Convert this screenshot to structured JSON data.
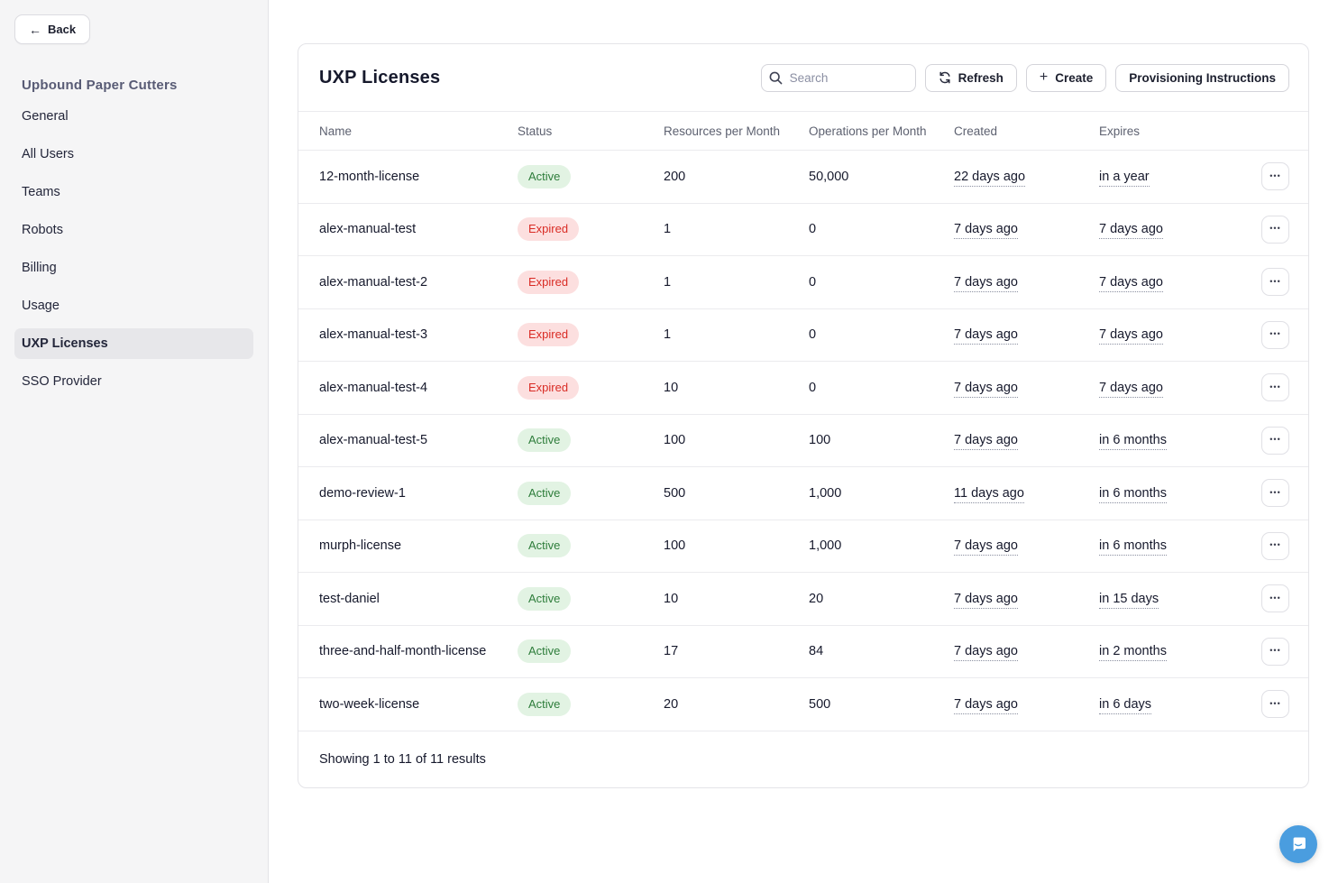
{
  "sidebar": {
    "back_label": "Back",
    "org_title": "Upbound Paper Cutters",
    "items": [
      {
        "label": "General",
        "active": false
      },
      {
        "label": "All Users",
        "active": false
      },
      {
        "label": "Teams",
        "active": false
      },
      {
        "label": "Robots",
        "active": false
      },
      {
        "label": "Billing",
        "active": false
      },
      {
        "label": "Usage",
        "active": false
      },
      {
        "label": "UXP Licenses",
        "active": true
      },
      {
        "label": "SSO Provider",
        "active": false
      }
    ]
  },
  "header": {
    "title": "UXP Licenses",
    "search_placeholder": "Search",
    "refresh_label": "Refresh",
    "create_label": "Create",
    "provisioning_label": "Provisioning Instructions"
  },
  "table": {
    "columns": [
      "Name",
      "Status",
      "Resources per Month",
      "Operations per Month",
      "Created",
      "Expires"
    ],
    "rows": [
      {
        "name": "12-month-license",
        "status": "Active",
        "resources": "200",
        "operations": "50,000",
        "created": "22 days ago",
        "expires": "in a year"
      },
      {
        "name": "alex-manual-test",
        "status": "Expired",
        "resources": "1",
        "operations": "0",
        "created": "7 days ago",
        "expires": "7 days ago"
      },
      {
        "name": "alex-manual-test-2",
        "status": "Expired",
        "resources": "1",
        "operations": "0",
        "created": "7 days ago",
        "expires": "7 days ago"
      },
      {
        "name": "alex-manual-test-3",
        "status": "Expired",
        "resources": "1",
        "operations": "0",
        "created": "7 days ago",
        "expires": "7 days ago"
      },
      {
        "name": "alex-manual-test-4",
        "status": "Expired",
        "resources": "10",
        "operations": "0",
        "created": "7 days ago",
        "expires": "7 days ago"
      },
      {
        "name": "alex-manual-test-5",
        "status": "Active",
        "resources": "100",
        "operations": "100",
        "created": "7 days ago",
        "expires": "in 6 months"
      },
      {
        "name": "demo-review-1",
        "status": "Active",
        "resources": "500",
        "operations": "1,000",
        "created": "11 days ago",
        "expires": "in 6 months"
      },
      {
        "name": "murph-license",
        "status": "Active",
        "resources": "100",
        "operations": "1,000",
        "created": "7 days ago",
        "expires": "in 6 months"
      },
      {
        "name": "test-daniel",
        "status": "Active",
        "resources": "10",
        "operations": "20",
        "created": "7 days ago",
        "expires": "in 15 days"
      },
      {
        "name": "three-and-half-month-license",
        "status": "Active",
        "resources": "17",
        "operations": "84",
        "created": "7 days ago",
        "expires": "in 2 months"
      },
      {
        "name": "two-week-license",
        "status": "Active",
        "resources": "20",
        "operations": "500",
        "created": "7 days ago",
        "expires": "in 6 days"
      }
    ],
    "footer_text": "Showing 1 to 11 of 11 results",
    "row_menu_glyph": "•••"
  },
  "icons": {
    "back_arrow": "←",
    "create_plus": "+"
  },
  "colors": {
    "active_badge_bg": "#e2f3e3",
    "active_badge_text": "#2e7d3b",
    "expired_badge_bg": "#fcdfdf",
    "expired_badge_text": "#d92c25",
    "chat_launcher": "#4a9ddf",
    "sidebar_bg": "#f5f5f6",
    "active_nav_bg": "#e7e7ea"
  }
}
